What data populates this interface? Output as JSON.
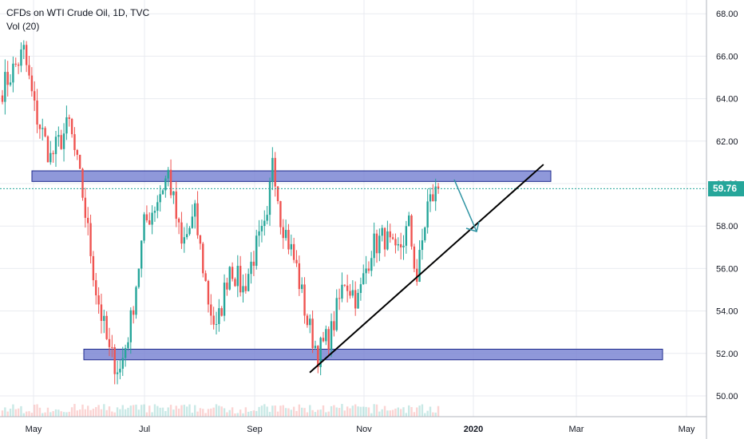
{
  "header": {
    "title": "CFDs on WTI Crude Oil, 1D, TVC",
    "volume_label": "Vol (20)"
  },
  "last_price": "59.76",
  "colors": {
    "up": "#26a69a",
    "down": "#ef5350",
    "zone_fill": "#7b86d4",
    "zone_stroke": "#1e2a8c",
    "trendline": "#000000",
    "arrow": "#2f94a3",
    "price_line": "#26a69a",
    "grid": "#e9ebf0"
  },
  "chart_data": {
    "type": "candlestick",
    "title": "CFDs on WTI Crude Oil, 1D, TVC",
    "x_ticks": [
      "May",
      "Jul",
      "Sep",
      "Nov",
      "2020",
      "Mar",
      "May"
    ],
    "y_ticks": [
      "68.00",
      "66.00",
      "64.00",
      "62.00",
      "60.00",
      "58.00",
      "56.00",
      "54.00",
      "52.00",
      "50.00"
    ],
    "ylim": [
      49.2,
      68.6
    ],
    "grid": true,
    "last_price": 59.76,
    "waypoints": [
      {
        "i": 0,
        "price": 64.5
      },
      {
        "i": 8,
        "price": 66.2
      },
      {
        "i": 12,
        "price": 63.5
      },
      {
        "i": 18,
        "price": 61.2
      },
      {
        "i": 25,
        "price": 62.8
      },
      {
        "i": 30,
        "price": 59.5
      },
      {
        "i": 35,
        "price": 55.0
      },
      {
        "i": 40,
        "price": 52.0
      },
      {
        "i": 44,
        "price": 51.2
      },
      {
        "i": 48,
        "price": 53.5
      },
      {
        "i": 53,
        "price": 58.0
      },
      {
        "i": 57,
        "price": 59.0
      },
      {
        "i": 62,
        "price": 60.5
      },
      {
        "i": 67,
        "price": 57.0
      },
      {
        "i": 72,
        "price": 58.5
      },
      {
        "i": 77,
        "price": 54.5
      },
      {
        "i": 80,
        "price": 53.0
      },
      {
        "i": 85,
        "price": 56.2
      },
      {
        "i": 90,
        "price": 55.0
      },
      {
        "i": 95,
        "price": 57.0
      },
      {
        "i": 99,
        "price": 58.0
      },
      {
        "i": 101,
        "price": 61.5
      },
      {
        "i": 104,
        "price": 58.5
      },
      {
        "i": 110,
        "price": 56.0
      },
      {
        "i": 114,
        "price": 53.5
      },
      {
        "i": 118,
        "price": 52.0
      },
      {
        "i": 123,
        "price": 53.0
      },
      {
        "i": 128,
        "price": 55.5
      },
      {
        "i": 133,
        "price": 54.5
      },
      {
        "i": 138,
        "price": 57.0
      },
      {
        "i": 143,
        "price": 57.5
      },
      {
        "i": 147,
        "price": 56.5
      },
      {
        "i": 152,
        "price": 58.0
      },
      {
        "i": 155,
        "price": 55.5
      },
      {
        "i": 159,
        "price": 59.0
      },
      {
        "i": 163,
        "price": 59.76
      }
    ],
    "resistance_zone": [
      60.1,
      60.6
    ],
    "support_zone": [
      51.7,
      52.2
    ],
    "trendline": {
      "from": {
        "date": "Oct 1",
        "price": 51.1
      },
      "to": {
        "date": "Feb 12",
        "price": 60.9
      }
    }
  }
}
